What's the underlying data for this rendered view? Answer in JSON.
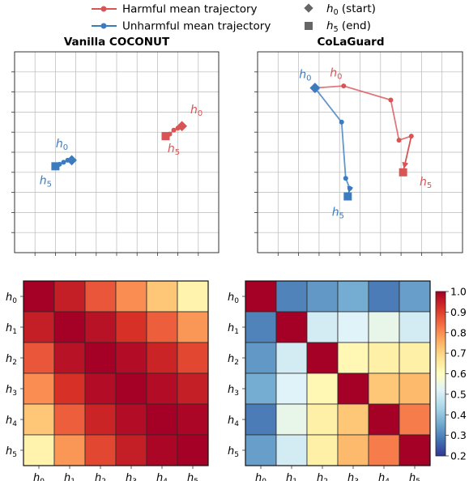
{
  "legend": {
    "entries": [
      {
        "label": "Harmful mean trajectory",
        "marker": "line-dot",
        "color": "#d95555"
      },
      {
        "label": "Unharmful mean trajectory",
        "marker": "line-dot",
        "color": "#3b7cc0"
      },
      {
        "label_sym": "h",
        "label_sub": "0",
        "label_rest": " (start)",
        "marker": "diamond",
        "color": "#666666"
      },
      {
        "label_sym": "h",
        "label_sub": "5",
        "label_rest": " (end)",
        "marker": "square",
        "color": "#666666"
      }
    ]
  },
  "colors": {
    "harmful": "#d95555",
    "unharmful": "#3b7cc0",
    "grid": "#b8b8b8",
    "heatmap_colormap": "RdYlBu_r"
  },
  "chart_data": [
    {
      "type": "line",
      "title": "Vanilla COCONUT",
      "xlim": [
        0,
        10
      ],
      "ylim": [
        0,
        10
      ],
      "grid": true,
      "tick_labels_shown": false,
      "series": [
        {
          "name": "Harmful mean trajectory",
          "color": "#d95555",
          "x": [
            8.2,
            8.0,
            7.8,
            7.6,
            7.4
          ],
          "y": [
            6.3,
            6.2,
            6.1,
            5.9,
            5.8
          ],
          "start_label": "h0",
          "end_label": "h5"
        },
        {
          "name": "Unharmful mean trajectory",
          "color": "#3b7cc0",
          "x": [
            2.8,
            2.6,
            2.4,
            2.2,
            2.0
          ],
          "y": [
            4.6,
            4.6,
            4.5,
            4.4,
            4.3
          ],
          "start_label": "h0",
          "end_label": "h5"
        }
      ]
    },
    {
      "type": "line",
      "title": "CoLaGuard",
      "xlim": [
        0,
        10
      ],
      "ylim": [
        0,
        10
      ],
      "grid": true,
      "tick_labels_shown": false,
      "series": [
        {
          "name": "Harmful mean trajectory",
          "color": "#d95555",
          "x": [
            2.8,
            4.2,
            6.5,
            6.9,
            7.5,
            7.1
          ],
          "y": [
            8.2,
            8.3,
            7.6,
            5.6,
            5.8,
            4.0
          ],
          "start_label": "h0",
          "end_label": "h5"
        },
        {
          "name": "Unharmful mean trajectory",
          "color": "#3b7cc0",
          "x": [
            2.8,
            4.1,
            4.3,
            4.5,
            4.4
          ],
          "y": [
            8.2,
            6.5,
            3.7,
            3.2,
            2.8
          ],
          "start_label": "h0",
          "end_label": "h5"
        }
      ]
    },
    {
      "type": "heatmap",
      "title": "",
      "row_labels": [
        "h0",
        "h1",
        "h2",
        "h3",
        "h4",
        "h5"
      ],
      "col_labels": [
        "h0",
        "h1",
        "h2",
        "h3",
        "h4",
        "h5"
      ],
      "vmin": 0.2,
      "vmax": 1.0,
      "values": [
        [
          1.0,
          0.95,
          0.87,
          0.8,
          0.72,
          0.63
        ],
        [
          0.95,
          1.0,
          0.97,
          0.92,
          0.86,
          0.79
        ],
        [
          0.87,
          0.97,
          1.0,
          0.98,
          0.94,
          0.89
        ],
        [
          0.8,
          0.92,
          0.98,
          1.0,
          0.98,
          0.95
        ],
        [
          0.72,
          0.86,
          0.94,
          0.98,
          1.0,
          0.99
        ],
        [
          0.63,
          0.79,
          0.89,
          0.95,
          0.99,
          1.0
        ]
      ]
    },
    {
      "type": "heatmap",
      "title": "",
      "row_labels": [
        "h0",
        "h1",
        "h2",
        "h3",
        "h4",
        "h5"
      ],
      "col_labels": [
        "h0",
        "h1",
        "h2",
        "h3",
        "h4",
        "h5"
      ],
      "vmin": 0.2,
      "vmax": 1.0,
      "values": [
        [
          1.0,
          0.3,
          0.33,
          0.36,
          0.29,
          0.34
        ],
        [
          0.3,
          1.0,
          0.5,
          0.52,
          0.54,
          0.5
        ],
        [
          0.33,
          0.5,
          1.0,
          0.62,
          0.64,
          0.64
        ],
        [
          0.36,
          0.52,
          0.62,
          1.0,
          0.72,
          0.74
        ],
        [
          0.29,
          0.54,
          0.64,
          0.72,
          1.0,
          0.82
        ],
        [
          0.34,
          0.5,
          0.64,
          0.74,
          0.82,
          1.0
        ]
      ]
    }
  ],
  "colorbar": {
    "ticks": [
      "0.2",
      "0.3",
      "0.4",
      "0.5",
      "0.6",
      "0.7",
      "0.8",
      "0.9",
      "1.0"
    ],
    "tick_values": [
      0.2,
      0.3,
      0.4,
      0.5,
      0.6,
      0.7,
      0.8,
      0.9,
      1.0
    ]
  }
}
